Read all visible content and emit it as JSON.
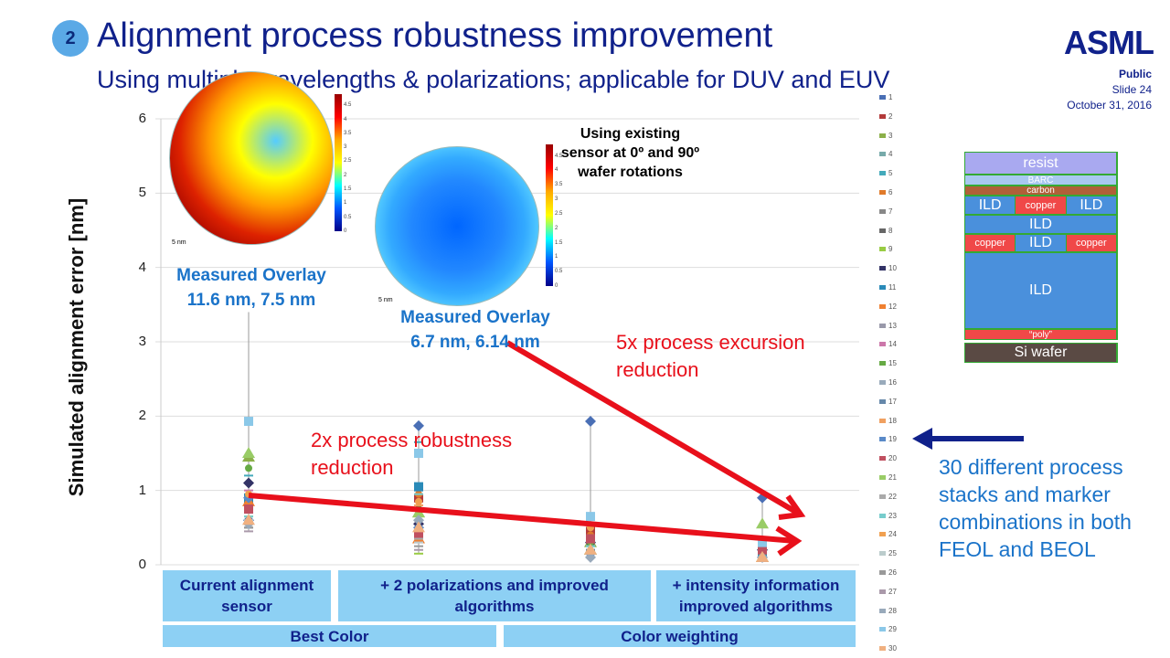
{
  "header": {
    "badge": "2",
    "title": "Alignment process robustness improvement",
    "subtitle": "Using multiple wavelengths & polarizations; applicable for DUV and EUV",
    "logo": "ASML",
    "classification": "Public",
    "slide": "Slide 24",
    "date": "October 31, 2016"
  },
  "colors": {
    "title": "#10218b",
    "accent_red": "#e8101b",
    "accent_blue": "#1a73c9",
    "category_box": "#8dd0f4"
  },
  "annotations": {
    "existing_sensor": "Using existing sensor at 0º and 90º wafer rotations",
    "overlay1_title": "Measured Overlay",
    "overlay1_value": "11.6 nm, 7.5 nm",
    "overlay2_title": "Measured Overlay",
    "overlay2_value": "6.7 nm, 6.14 nm",
    "excursion": "5x process excursion reduction",
    "robustness": "2x process robustness reduction",
    "note": "30 different process stacks and marker combinations in both FEOL and BEOL"
  },
  "wafer_maps": {
    "scale_label": "5 nm",
    "colorbar_ticks": [
      "4.5",
      "4",
      "3.5",
      "3",
      "2.5",
      "2",
      "1.5",
      "1",
      "0.5",
      "0"
    ]
  },
  "stack": {
    "resist": "resist",
    "barc": "BARC",
    "carbon": "carbon",
    "ild": "ILD",
    "copper": "copper",
    "poly": "“poly”",
    "si": "Si wafer"
  },
  "group_labels": [
    "Best Color",
    "Color weighting"
  ],
  "chart_data": {
    "type": "scatter",
    "ylabel": "Simulated alignment error [nm]",
    "ylim": [
      0,
      6
    ],
    "yticks": [
      0,
      1,
      2,
      3,
      4,
      5,
      6
    ],
    "grid": true,
    "legend_placement": "right",
    "categories": [
      "Current alignment sensor",
      "+ 2 polarizations and  improved algorithms",
      "+ intensity information improved algorithms"
    ],
    "x_positions": [
      "Current alignment sensor",
      "+ 2 polarizations and  improved algorithms",
      "",
      "+ intensity information improved algorithms"
    ],
    "series": [
      {
        "name": "1",
        "color": "#4a6fb5",
        "marker": "diamond",
        "values": [
          0.6,
          1.87,
          1.93,
          0.9
        ]
      },
      {
        "name": "2",
        "color": "#b33a3a",
        "marker": "square",
        "values": [
          0.8,
          0.9,
          0.45,
          0.2
        ]
      },
      {
        "name": "3",
        "color": "#8cb04a",
        "marker": "triangle",
        "values": [
          1.45,
          0.7,
          0.3,
          0.1
        ]
      },
      {
        "name": "4",
        "color": "#7aa",
        "marker": "x",
        "values": [
          0.55,
          1.0,
          0.2,
          0.1
        ]
      },
      {
        "name": "5",
        "color": "#4ab",
        "marker": "x",
        "values": [
          1.2,
          1.65,
          0.25,
          0.15
        ]
      },
      {
        "name": "6",
        "color": "#e07a2a",
        "marker": "circle",
        "values": [
          0.75,
          0.95,
          0.4,
          0.25
        ]
      },
      {
        "name": "7",
        "color": "#888",
        "marker": "plus",
        "values": [
          0.7,
          0.6,
          0.2,
          0.1
        ]
      },
      {
        "name": "8",
        "color": "#666",
        "marker": "dash",
        "values": [
          0.5,
          0.4,
          0.15,
          0.05
        ]
      },
      {
        "name": "9",
        "color": "#9c4",
        "marker": "dash",
        "values": [
          0.65,
          0.15,
          0.1,
          0.05
        ]
      },
      {
        "name": "10",
        "color": "#336",
        "marker": "diamond",
        "values": [
          1.1,
          0.55,
          0.3,
          0.2
        ]
      },
      {
        "name": "11",
        "color": "#2a8ab8",
        "marker": "square",
        "values": [
          0.9,
          1.05,
          0.35,
          0.15
        ]
      },
      {
        "name": "12",
        "color": "#f08030",
        "marker": "triangle",
        "values": [
          0.85,
          0.35,
          0.2,
          0.1
        ]
      },
      {
        "name": "13",
        "color": "#99a",
        "marker": "x",
        "values": [
          0.6,
          0.5,
          0.25,
          0.1
        ]
      },
      {
        "name": "14",
        "color": "#c7a",
        "marker": "x",
        "values": [
          1.0,
          0.3,
          0.2,
          0.1
        ]
      },
      {
        "name": "15",
        "color": "#6a4",
        "marker": "circle",
        "values": [
          1.3,
          0.75,
          0.3,
          0.15
        ]
      },
      {
        "name": "16",
        "color": "#9ab",
        "marker": "plus",
        "values": [
          0.7,
          0.45,
          0.15,
          0.05
        ]
      },
      {
        "name": "17",
        "color": "#68a",
        "marker": "dash",
        "values": [
          0.6,
          0.6,
          0.2,
          0.1
        ]
      },
      {
        "name": "18",
        "color": "#f0a060",
        "marker": "dash",
        "values": [
          0.8,
          0.8,
          0.3,
          0.1
        ]
      },
      {
        "name": "19",
        "color": "#5a8ac8",
        "marker": "diamond",
        "values": [
          0.9,
          0.5,
          0.15,
          0.1
        ]
      },
      {
        "name": "20",
        "color": "#c05060",
        "marker": "square",
        "values": [
          0.75,
          0.4,
          0.35,
          0.2
        ]
      },
      {
        "name": "21",
        "color": "#9c6",
        "marker": "triangle",
        "values": [
          1.5,
          0.7,
          0.2,
          0.55
        ]
      },
      {
        "name": "22",
        "color": "#aaa",
        "marker": "x",
        "values": [
          0.55,
          0.35,
          0.1,
          0.05
        ]
      },
      {
        "name": "23",
        "color": "#7cc",
        "marker": "x",
        "values": [
          0.65,
          0.95,
          0.25,
          0.1
        ]
      },
      {
        "name": "24",
        "color": "#f0a050",
        "marker": "circle",
        "values": [
          0.95,
          0.85,
          0.5,
          0.3
        ]
      },
      {
        "name": "25",
        "color": "#bcc",
        "marker": "plus",
        "values": [
          0.6,
          0.3,
          0.15,
          0.05
        ]
      },
      {
        "name": "26",
        "color": "#999",
        "marker": "dash",
        "values": [
          0.5,
          0.25,
          0.1,
          0.05
        ]
      },
      {
        "name": "27",
        "color": "#a9a",
        "marker": "dash",
        "values": [
          0.45,
          0.2,
          0.15,
          0.05
        ]
      },
      {
        "name": "28",
        "color": "#9ab",
        "marker": "diamond",
        "values": [
          0.55,
          0.6,
          0.1,
          0.1
        ]
      },
      {
        "name": "29",
        "color": "#8bc8e8",
        "marker": "square",
        "values": [
          1.93,
          1.5,
          0.65,
          0.3
        ]
      },
      {
        "name": "30",
        "color": "#f0b080",
        "marker": "triangle",
        "values": [
          0.6,
          0.5,
          0.2,
          0.1
        ]
      }
    ]
  }
}
